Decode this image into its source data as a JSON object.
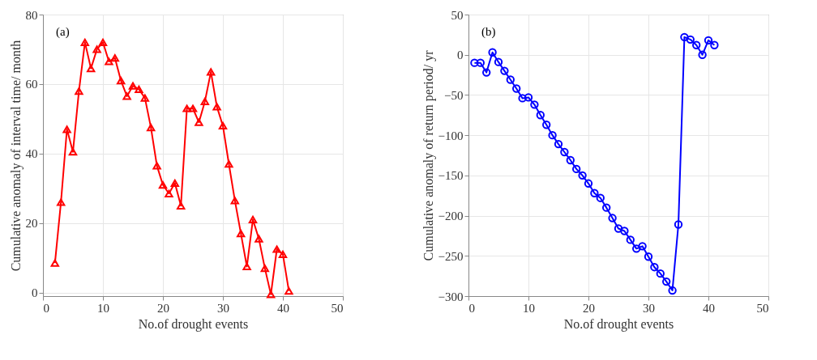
{
  "chart_data": [
    {
      "type": "line",
      "xlabel": "No.of drought events",
      "ylabel": "Cumulative anomaly of interval time/ month",
      "annotations": [
        "(a)"
      ],
      "xlim": [
        0,
        50
      ],
      "xticks": [
        0,
        10,
        20,
        30,
        40,
        50
      ],
      "ylim": [
        -1,
        80
      ],
      "yticks": [
        0,
        20,
        40,
        60,
        80
      ],
      "grid": true,
      "marker": "triangle",
      "line_style": "solid",
      "x": [
        2,
        3,
        4,
        5,
        6,
        7,
        8,
        9,
        10,
        11,
        12,
        13,
        14,
        15,
        16,
        17,
        18,
        19,
        20,
        21,
        22,
        23,
        24,
        25,
        26,
        27,
        28,
        29,
        30,
        31,
        32,
        33,
        34,
        35,
        36,
        37,
        38,
        39,
        40,
        41
      ],
      "series": [
        {
          "color": "#ff0000",
          "values": [
            8.5,
            26,
            47,
            40.5,
            58,
            72,
            64.5,
            70,
            72,
            66.5,
            67.5,
            61,
            56.5,
            59.5,
            58.5,
            56,
            47.5,
            36.5,
            31,
            28.5,
            31.5,
            25,
            53,
            53,
            49,
            55,
            63.5,
            53.5,
            48,
            37,
            26.5,
            17,
            7.5,
            21,
            15.5,
            7,
            -0.5,
            12.5,
            11,
            0.5
          ]
        }
      ]
    },
    {
      "type": "line",
      "xlabel": "No.of drought events",
      "ylabel": "Cumulative anomaly of return period/ yr",
      "annotations": [
        "(b)"
      ],
      "xlim": [
        0,
        50
      ],
      "xticks": [
        0,
        10,
        20,
        30,
        40,
        50
      ],
      "ylim": [
        -300,
        50
      ],
      "yticks": [
        -300,
        -250,
        -200,
        -150,
        -100,
        -50,
        0,
        50
      ],
      "grid": true,
      "marker": "circle",
      "line_style": "solid",
      "x": [
        1,
        2,
        3,
        4,
        5,
        6,
        7,
        8,
        9,
        10,
        11,
        12,
        13,
        14,
        15,
        16,
        17,
        18,
        19,
        20,
        21,
        22,
        23,
        24,
        25,
        26,
        27,
        28,
        29,
        30,
        31,
        32,
        33,
        34,
        35,
        36,
        37,
        38,
        39,
        40,
        41
      ],
      "series": [
        {
          "color": "#0000ff",
          "values": [
            -10,
            -10,
            -22,
            3,
            -9,
            -20,
            -31,
            -42,
            -54,
            -53,
            -62,
            -75,
            -87,
            -100,
            -111,
            -121,
            -131,
            -142,
            -150,
            -160,
            -172,
            -178,
            -190,
            -203,
            -216,
            -219,
            -230,
            -241,
            -238,
            -251,
            -264,
            -272,
            -282,
            -293,
            -211,
            22,
            19,
            12,
            0,
            18,
            12
          ]
        }
      ]
    }
  ]
}
